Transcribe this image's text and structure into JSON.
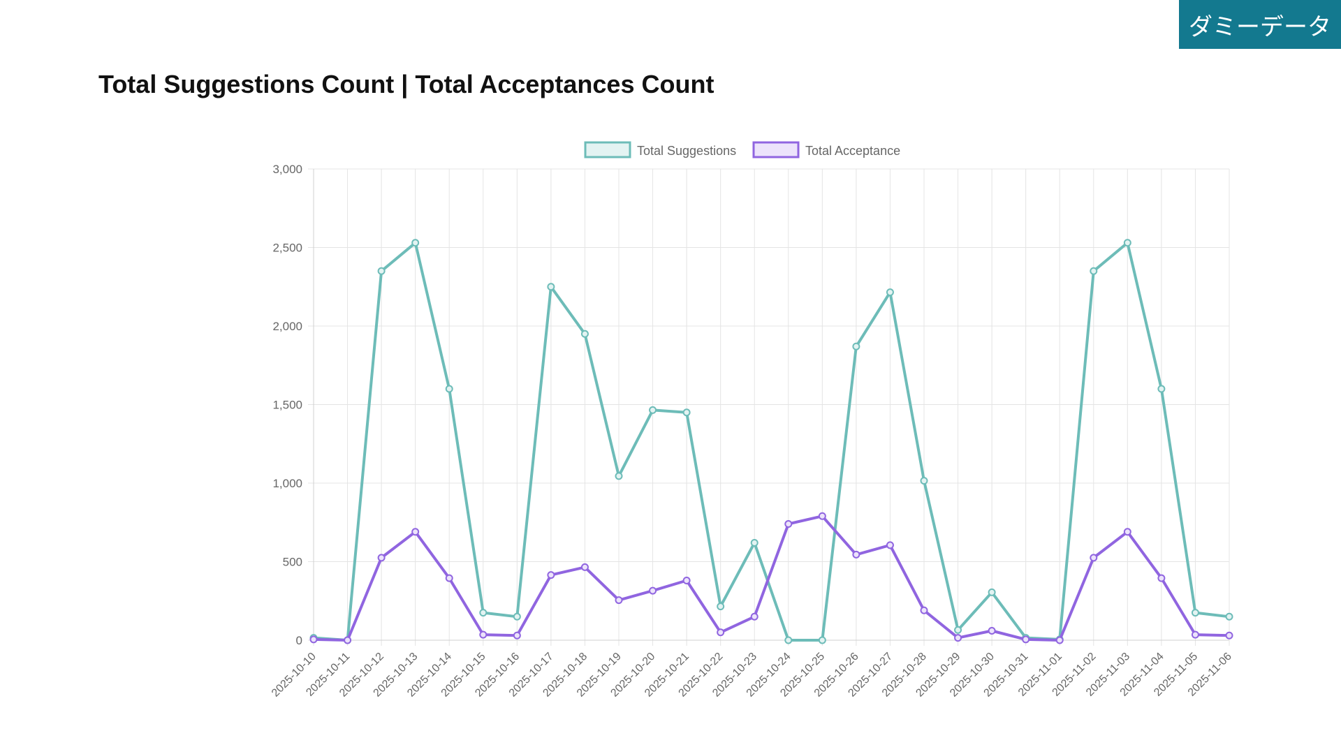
{
  "badge": "ダミーデータ",
  "page_title": "Total Suggestions Count | Total Acceptances Count",
  "colors": {
    "suggestions": "#6dbcb8",
    "acceptance": "#9065e0",
    "badge_bg": "#13798f",
    "grid": "#e4e4e4"
  },
  "chart_data": {
    "type": "line",
    "x": [
      "2025-10-10",
      "2025-10-11",
      "2025-10-12",
      "2025-10-13",
      "2025-10-14",
      "2025-10-15",
      "2025-10-16",
      "2025-10-17",
      "2025-10-18",
      "2025-10-19",
      "2025-10-20",
      "2025-10-21",
      "2025-10-22",
      "2025-10-23",
      "2025-10-24",
      "2025-10-25",
      "2025-10-26",
      "2025-10-27",
      "2025-10-28",
      "2025-10-29",
      "2025-10-30",
      "2025-10-31",
      "2025-11-01",
      "2025-11-02",
      "2025-11-03",
      "2025-11-04",
      "2025-11-05",
      "2025-11-06"
    ],
    "series": [
      {
        "name": "Total Suggestions",
        "color": "#6dbcb8",
        "values": [
          15,
          0,
          2350,
          2530,
          1600,
          175,
          150,
          2250,
          1950,
          1045,
          1465,
          1450,
          215,
          620,
          0,
          0,
          1870,
          2215,
          1015,
          65,
          305,
          15,
          5,
          2350,
          2530,
          1600,
          175,
          150
        ]
      },
      {
        "name": "Total Acceptance",
        "color": "#9065e0",
        "values": [
          5,
          0,
          525,
          690,
          395,
          35,
          30,
          415,
          465,
          255,
          315,
          380,
          50,
          150,
          740,
          790,
          545,
          605,
          190,
          15,
          60,
          5,
          0,
          525,
          690,
          395,
          35,
          30
        ]
      }
    ],
    "ylim": [
      0,
      3000
    ],
    "yticks": [
      0,
      500,
      1000,
      1500,
      2000,
      2500,
      3000
    ],
    "ytick_labels": [
      "0",
      "500",
      "1,000",
      "1,500",
      "2,000",
      "2,500",
      "3,000"
    ],
    "legend": "top-center",
    "grid": true
  }
}
